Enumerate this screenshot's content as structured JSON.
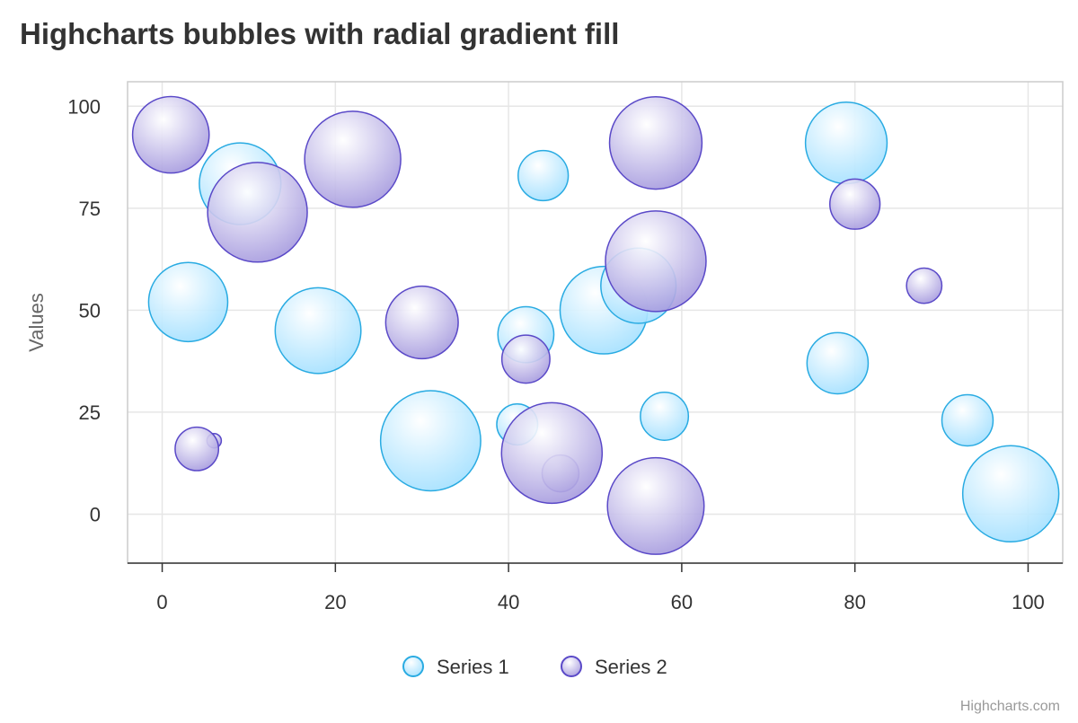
{
  "chart_data": {
    "type": "scatter",
    "subtype": "bubble",
    "title": "Highcharts bubbles with radial gradient fill",
    "ylabel": "Values",
    "xlabel": "",
    "xlim": [
      -4,
      104
    ],
    "ylim": [
      -12,
      106
    ],
    "x_ticks": [
      0,
      20,
      40,
      60,
      80,
      100
    ],
    "y_ticks": [
      0,
      25,
      50,
      75,
      100
    ],
    "grid": true,
    "legend_position": "bottom-center",
    "credit": "Highcharts.com",
    "series": [
      {
        "name": "Series 1",
        "color": "#29abe2",
        "points": [
          {
            "x": 9,
            "y": 81,
            "z": 63
          },
          {
            "x": 98,
            "y": 5,
            "z": 89
          },
          {
            "x": 51,
            "y": 50,
            "z": 73
          },
          {
            "x": 41,
            "y": 22,
            "z": 14
          },
          {
            "x": 58,
            "y": 24,
            "z": 20
          },
          {
            "x": 78,
            "y": 37,
            "z": 34
          },
          {
            "x": 55,
            "y": 56,
            "z": 53
          },
          {
            "x": 18,
            "y": 45,
            "z": 70
          },
          {
            "x": 42,
            "y": 44,
            "z": 28
          },
          {
            "x": 3,
            "y": 52,
            "z": 59
          },
          {
            "x": 31,
            "y": 18,
            "z": 97
          },
          {
            "x": 79,
            "y": 91,
            "z": 63
          },
          {
            "x": 93,
            "y": 23,
            "z": 23
          },
          {
            "x": 44,
            "y": 83,
            "z": 22
          }
        ]
      },
      {
        "name": "Series 2",
        "color": "#5a49c8",
        "points": [
          {
            "x": 42,
            "y": 38,
            "z": 20
          },
          {
            "x": 6,
            "y": 18,
            "z": 1
          },
          {
            "x": 1,
            "y": 93,
            "z": 55
          },
          {
            "x": 57,
            "y": 2,
            "z": 90
          },
          {
            "x": 80,
            "y": 76,
            "z": 22
          },
          {
            "x": 11,
            "y": 74,
            "z": 96
          },
          {
            "x": 88,
            "y": 56,
            "z": 10
          },
          {
            "x": 30,
            "y": 47,
            "z": 49
          },
          {
            "x": 57,
            "y": 62,
            "z": 98
          },
          {
            "x": 4,
            "y": 16,
            "z": 16
          },
          {
            "x": 46,
            "y": 10,
            "z": 11
          },
          {
            "x": 22,
            "y": 87,
            "z": 89
          },
          {
            "x": 57,
            "y": 91,
            "z": 82
          },
          {
            "x": 45,
            "y": 15,
            "z": 98
          }
        ]
      }
    ]
  }
}
